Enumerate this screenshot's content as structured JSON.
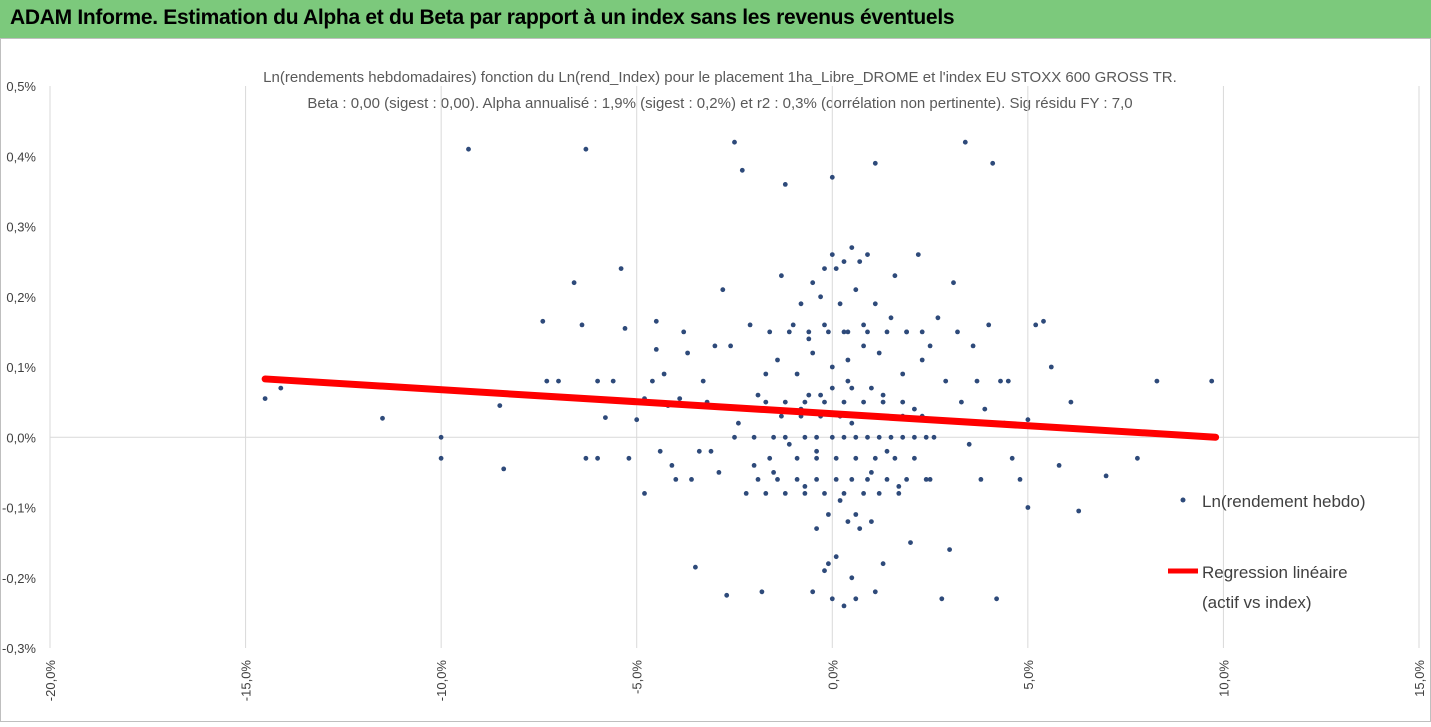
{
  "header": {
    "title": "ADAM Informe. Estimation du Alpha et du Beta par rapport à un index sans les revenus éventuels"
  },
  "colors": {
    "header_bg": "#7cc97c",
    "points": "#2e4a7a",
    "regression": "#ff0000",
    "grid": "#d9d9d9"
  },
  "chart_data": {
    "type": "scatter",
    "title_line1": "Ln(rendements hebdomadaires) fonction du Ln(rend_Index) pour le placement 1ha_Libre_DROME et l'index EU STOXX 600 GROSS TR.",
    "title_line2": "Beta : 0,00 (sigest : 0,00). Alpha annualisé : 1,9% (sigest : 0,2%) et r2 : 0,3% (corrélation non pertinente). Sig résidu FY : 7,0",
    "xlim": [
      -0.2,
      0.15
    ],
    "ylim": [
      -0.003,
      0.005
    ],
    "x_ticks": [
      -0.2,
      -0.15,
      -0.1,
      -0.05,
      0.0,
      0.05,
      0.1,
      0.15
    ],
    "x_tick_labels": [
      "-20,0%",
      "-15,0%",
      "-10,0%",
      "-5,0%",
      "0,0%",
      "5,0%",
      "10,0%",
      "15,0%"
    ],
    "y_ticks": [
      0.005,
      0.004,
      0.003,
      0.002,
      0.001,
      0.0,
      -0.001,
      -0.002,
      -0.003
    ],
    "y_tick_labels": [
      "0,5%",
      "0,4%",
      "0,3%",
      "0,2%",
      "0,1%",
      "0,0%",
      "-0,1%",
      "-0,2%",
      "-0,3%"
    ],
    "grid": "vertical",
    "legend_position": "right",
    "legend": [
      "Ln(rendement hebdo)",
      "Regression linéaire",
      "(actif vs index)"
    ],
    "regression": {
      "x": [
        -0.145,
        0.098
      ],
      "y": [
        0.00083,
        0.0
      ]
    },
    "series_points": [
      [
        -0.145,
        0.00055
      ],
      [
        -0.141,
        0.0007
      ],
      [
        -0.115,
        0.00027
      ],
      [
        -0.1,
        0.0
      ],
      [
        -0.1,
        -0.0003
      ],
      [
        -0.093,
        0.0041
      ],
      [
        -0.085,
        0.00045
      ],
      [
        -0.084,
        -0.00045
      ],
      [
        -0.075,
        0.0006
      ],
      [
        -0.074,
        0.00165
      ],
      [
        -0.073,
        0.0008
      ],
      [
        -0.07,
        0.0008
      ],
      [
        -0.066,
        0.0022
      ],
      [
        -0.064,
        0.0016
      ],
      [
        -0.063,
        0.0041
      ],
      [
        -0.063,
        -0.0003
      ],
      [
        -0.06,
        0.0008
      ],
      [
        -0.06,
        -0.0003
      ],
      [
        -0.058,
        0.00028
      ],
      [
        -0.056,
        0.0008
      ],
      [
        -0.054,
        0.0024
      ],
      [
        -0.053,
        0.00155
      ],
      [
        -0.052,
        -0.0003
      ],
      [
        -0.05,
        0.00025
      ],
      [
        -0.048,
        -0.0008
      ],
      [
        -0.048,
        0.00055
      ],
      [
        -0.046,
        0.0008
      ],
      [
        -0.045,
        0.00165
      ],
      [
        -0.045,
        0.00125
      ],
      [
        -0.044,
        -0.0002
      ],
      [
        -0.043,
        0.0009
      ],
      [
        -0.042,
        0.00045
      ],
      [
        -0.041,
        -0.0004
      ],
      [
        -0.04,
        -0.0006
      ],
      [
        -0.039,
        0.00055
      ],
      [
        -0.038,
        0.0015
      ],
      [
        -0.037,
        0.0012
      ],
      [
        -0.036,
        -0.0006
      ],
      [
        -0.035,
        -0.00185
      ],
      [
        -0.034,
        -0.0002
      ],
      [
        -0.033,
        0.0008
      ],
      [
        -0.032,
        0.0005
      ],
      [
        -0.031,
        -0.0002
      ],
      [
        -0.03,
        0.0013
      ],
      [
        -0.029,
        -0.0005
      ],
      [
        -0.028,
        0.0021
      ],
      [
        -0.027,
        -0.00225
      ],
      [
        -0.026,
        0.0013
      ],
      [
        -0.025,
        0.0042
      ],
      [
        -0.024,
        0.0002
      ],
      [
        -0.023,
        0.0038
      ],
      [
        -0.022,
        -0.0008
      ],
      [
        -0.021,
        0.0016
      ],
      [
        -0.02,
        -0.0004
      ],
      [
        -0.019,
        0.0006
      ],
      [
        -0.018,
        -0.0022
      ],
      [
        -0.017,
        0.0009
      ],
      [
        -0.016,
        0.0015
      ],
      [
        -0.015,
        -0.0005
      ],
      [
        -0.014,
        0.0011
      ],
      [
        -0.013,
        0.0023
      ],
      [
        -0.012,
        0.0036
      ],
      [
        -0.011,
        -0.0001
      ],
      [
        -0.01,
        0.0016
      ],
      [
        -0.009,
        0.0009
      ],
      [
        -0.008,
        0.0004
      ],
      [
        -0.007,
        -0.0007
      ],
      [
        -0.006,
        0.0014
      ],
      [
        -0.005,
        0.0022
      ],
      [
        -0.004,
        -0.0002
      ],
      [
        -0.003,
        0.0006
      ],
      [
        -0.002,
        0.0016
      ],
      [
        -0.001,
        -0.0018
      ],
      [
        0.0,
        0.0037
      ],
      [
        0.001,
        0.0024
      ],
      [
        0.002,
        -0.0009
      ],
      [
        0.003,
        0.0015
      ],
      [
        0.004,
        0.0008
      ],
      [
        0.005,
        0.0002
      ],
      [
        0.006,
        -0.0011
      ],
      [
        0.007,
        0.0025
      ],
      [
        0.008,
        0.0016
      ],
      [
        0.009,
        0.0
      ],
      [
        0.01,
        -0.0005
      ],
      [
        0.011,
        0.0039
      ],
      [
        0.012,
        0.0012
      ],
      [
        0.013,
        0.0006
      ],
      [
        0.014,
        -0.0002
      ],
      [
        0.015,
        0.0017
      ],
      [
        0.016,
        0.0023
      ],
      [
        0.017,
        -0.0007
      ],
      [
        0.018,
        0.0009
      ],
      [
        0.019,
        0.0015
      ],
      [
        0.02,
        -0.0015
      ],
      [
        0.021,
        0.0004
      ],
      [
        0.022,
        0.0026
      ],
      [
        0.023,
        0.0011
      ],
      [
        0.024,
        -0.0006
      ],
      [
        0.025,
        0.0013
      ],
      [
        0.026,
        0.0
      ],
      [
        0.027,
        0.0017
      ],
      [
        0.028,
        -0.0023
      ],
      [
        0.029,
        0.0008
      ],
      [
        0.03,
        -0.0016
      ],
      [
        0.031,
        0.0022
      ],
      [
        0.032,
        0.0015
      ],
      [
        0.033,
        0.0005
      ],
      [
        0.034,
        0.0042
      ],
      [
        0.035,
        -0.0001
      ],
      [
        0.036,
        0.0013
      ],
      [
        0.037,
        0.0008
      ],
      [
        0.038,
        -0.0006
      ],
      [
        0.039,
        0.0004
      ],
      [
        0.04,
        0.0016
      ],
      [
        0.041,
        0.0039
      ],
      [
        0.042,
        -0.0023
      ],
      [
        0.043,
        0.0008
      ],
      [
        0.044,
        0.0002
      ],
      [
        0.045,
        0.0008
      ],
      [
        0.046,
        -0.0003
      ],
      [
        0.048,
        -0.0006
      ],
      [
        0.05,
        -0.001
      ],
      [
        0.05,
        0.00025
      ],
      [
        0.052,
        0.0016
      ],
      [
        0.054,
        0.00165
      ],
      [
        0.056,
        0.001
      ],
      [
        0.058,
        -0.0004
      ],
      [
        0.061,
        0.0005
      ],
      [
        0.063,
        -0.00105
      ],
      [
        0.07,
        -0.00055
      ],
      [
        0.078,
        -0.0003
      ],
      [
        0.083,
        0.0008
      ],
      [
        0.097,
        0.0008
      ],
      [
        -0.007,
        0.0
      ],
      [
        -0.004,
        0.0
      ],
      [
        0.0,
        0.0
      ],
      [
        0.003,
        0.0
      ],
      [
        0.006,
        0.0
      ],
      [
        0.012,
        0.0
      ],
      [
        0.015,
        0.0
      ],
      [
        0.018,
        0.0
      ],
      [
        -0.012,
        0.0
      ],
      [
        -0.015,
        0.0
      ],
      [
        0.021,
        0.0
      ],
      [
        -0.02,
        0.0
      ],
      [
        -0.025,
        0.0
      ],
      [
        0.024,
        0.0
      ],
      [
        -0.003,
        0.0003
      ],
      [
        0.002,
        0.0003
      ],
      [
        0.007,
        0.0003
      ],
      [
        0.013,
        0.0003
      ],
      [
        0.018,
        0.0003
      ],
      [
        -0.008,
        0.0003
      ],
      [
        -0.013,
        0.0003
      ],
      [
        0.023,
        0.0003
      ],
      [
        -0.004,
        -0.0006
      ],
      [
        0.001,
        -0.0006
      ],
      [
        0.005,
        -0.0006
      ],
      [
        0.009,
        -0.0006
      ],
      [
        0.014,
        -0.0006
      ],
      [
        0.019,
        -0.0006
      ],
      [
        -0.009,
        -0.0006
      ],
      [
        -0.014,
        -0.0006
      ],
      [
        0.025,
        -0.0006
      ],
      [
        -0.019,
        -0.0006
      ],
      [
        -0.002,
        -0.0008
      ],
      [
        0.003,
        -0.0008
      ],
      [
        0.008,
        -0.0008
      ],
      [
        0.012,
        -0.0008
      ],
      [
        -0.007,
        -0.0008
      ],
      [
        -0.012,
        -0.0008
      ],
      [
        0.017,
        -0.0008
      ],
      [
        -0.017,
        -0.0008
      ],
      [
        -0.001,
        0.0015
      ],
      [
        0.004,
        0.0015
      ],
      [
        0.009,
        0.0015
      ],
      [
        0.014,
        0.0015
      ],
      [
        -0.006,
        0.0015
      ],
      [
        -0.011,
        0.0015
      ],
      [
        0.019,
        0.0015
      ],
      [
        0.023,
        0.0015
      ],
      [
        -0.002,
        0.0005
      ],
      [
        0.003,
        0.0005
      ],
      [
        0.008,
        0.0005
      ],
      [
        -0.007,
        0.0005
      ],
      [
        0.013,
        0.0005
      ],
      [
        -0.012,
        0.0005
      ],
      [
        0.018,
        0.0005
      ],
      [
        -0.017,
        0.0005
      ],
      [
        0.001,
        -0.0003
      ],
      [
        0.006,
        -0.0003
      ],
      [
        -0.004,
        -0.0003
      ],
      [
        0.011,
        -0.0003
      ],
      [
        -0.009,
        -0.0003
      ],
      [
        0.016,
        -0.0003
      ],
      [
        -0.016,
        -0.0003
      ],
      [
        0.021,
        -0.0003
      ],
      [
        0.0,
        0.0026
      ],
      [
        0.003,
        0.0025
      ],
      [
        0.005,
        0.0027
      ],
      [
        -0.002,
        0.0024
      ],
      [
        0.009,
        0.0026
      ],
      [
        0.002,
        0.0019
      ],
      [
        -0.003,
        0.002
      ],
      [
        0.006,
        0.0021
      ],
      [
        0.011,
        0.0019
      ],
      [
        -0.008,
        0.0019
      ],
      [
        0.0,
        0.001
      ],
      [
        0.004,
        0.0011
      ],
      [
        -0.005,
        0.0012
      ],
      [
        0.008,
        0.0013
      ],
      [
        -0.001,
        -0.0011
      ],
      [
        0.004,
        -0.0012
      ],
      [
        0.007,
        -0.0013
      ],
      [
        -0.004,
        -0.0013
      ],
      [
        0.01,
        -0.0012
      ],
      [
        0.001,
        -0.0017
      ],
      [
        -0.002,
        -0.0019
      ],
      [
        0.005,
        -0.002
      ],
      [
        0.013,
        -0.0018
      ],
      [
        0.0,
        -0.0023
      ],
      [
        0.006,
        -0.0023
      ],
      [
        -0.005,
        -0.0022
      ],
      [
        0.011,
        -0.0022
      ],
      [
        0.003,
        -0.0024
      ],
      [
        0.0,
        0.0007
      ],
      [
        0.005,
        0.0007
      ],
      [
        -0.006,
        0.0006
      ],
      [
        0.01,
        0.0007
      ]
    ]
  }
}
